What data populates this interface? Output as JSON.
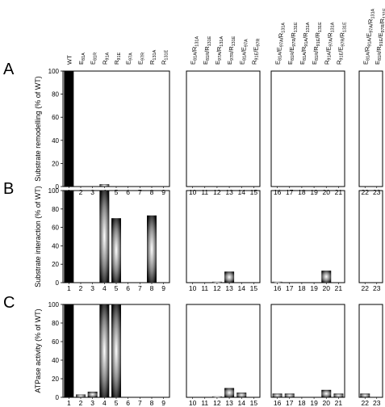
{
  "chart_data": [
    {
      "type": "bar",
      "panel_letter": "A",
      "ylabel": "Substrate remodelling (% of WT)",
      "ylim": [
        0,
        100
      ],
      "yticks": [
        0,
        20,
        40,
        60,
        80,
        100
      ],
      "groups": [
        [
          1,
          2,
          3,
          4,
          5,
          6,
          7,
          8,
          9
        ],
        [
          10,
          11,
          12,
          13,
          14,
          15
        ],
        [
          16,
          17,
          18,
          19,
          20,
          21
        ],
        [
          22,
          23
        ]
      ],
      "categories": [
        1,
        2,
        3,
        4,
        5,
        6,
        7,
        8,
        9,
        10,
        11,
        12,
        13,
        14,
        15,
        16,
        17,
        18,
        19,
        20,
        21,
        22,
        23
      ],
      "values": [
        100,
        0,
        0,
        2,
        0,
        0,
        0,
        0,
        0,
        0,
        0,
        0,
        0,
        0,
        0,
        0,
        0,
        0,
        0,
        0,
        0,
        0,
        0
      ]
    },
    {
      "type": "bar",
      "panel_letter": "B",
      "ylabel": "Substrate interaction (% of WT)",
      "ylim": [
        0,
        100
      ],
      "yticks": [
        0,
        20,
        40,
        60,
        80,
        100
      ],
      "groups": [
        [
          1,
          2,
          3,
          4,
          5,
          6,
          7,
          8,
          9
        ],
        [
          10,
          11,
          12,
          13,
          14,
          15
        ],
        [
          16,
          17,
          18,
          19,
          20,
          21
        ],
        [
          22,
          23
        ]
      ],
      "categories": [
        1,
        2,
        3,
        4,
        5,
        6,
        7,
        8,
        9,
        10,
        11,
        12,
        13,
        14,
        15,
        16,
        17,
        18,
        19,
        20,
        21,
        22,
        23
      ],
      "values": [
        100,
        0,
        0,
        100,
        70,
        0,
        0,
        73,
        0,
        0,
        0,
        1,
        12,
        0,
        0,
        1,
        0,
        0,
        0,
        13,
        0,
        0,
        0
      ]
    },
    {
      "type": "bar",
      "panel_letter": "C",
      "ylabel": "ATPase activity (% of WT)",
      "ylim": [
        0,
        100
      ],
      "yticks": [
        0,
        20,
        40,
        60,
        80,
        100
      ],
      "groups": [
        [
          1,
          2,
          3,
          4,
          5,
          6,
          7,
          8,
          9
        ],
        [
          10,
          11,
          12,
          13,
          14,
          15
        ],
        [
          16,
          17,
          18,
          19,
          20,
          21
        ],
        [
          22,
          23
        ]
      ],
      "categories": [
        1,
        2,
        3,
        4,
        5,
        6,
        7,
        8,
        9,
        10,
        11,
        12,
        13,
        14,
        15,
        16,
        17,
        18,
        19,
        20,
        21,
        22,
        23
      ],
      "values": [
        100,
        3,
        6,
        100,
        100,
        0,
        0,
        0,
        0,
        0,
        0,
        1,
        10,
        5,
        0,
        4,
        4,
        0,
        0,
        8,
        4,
        4,
        0
      ]
    }
  ],
  "mutant_labels": [
    [
      {
        "b": "WT",
        "s": ""
      }
    ],
    [
      {
        "b": "E",
        "s": "81A"
      }
    ],
    [
      {
        "b": "E",
        "s": "81R"
      }
    ],
    [
      {
        "b": "R",
        "s": "91A"
      }
    ],
    [
      {
        "b": "R",
        "s": "91E"
      }
    ],
    [
      {
        "b": "E",
        "s": "97A"
      }
    ],
    [
      {
        "b": "E",
        "s": "97R"
      }
    ],
    [
      {
        "b": "R",
        "s": "131A"
      }
    ],
    [
      {
        "b": "R",
        "s": "131E"
      }
    ],
    [
      {
        "b": "E",
        "s": "81A"
      },
      {
        "b": "/R",
        "s": "131A"
      }
    ],
    [
      {
        "b": "E",
        "s": "81R"
      },
      {
        "b": "/R",
        "s": "131E"
      }
    ],
    [
      {
        "b": "E",
        "s": "97A"
      },
      {
        "b": "/R",
        "s": "131A"
      }
    ],
    [
      {
        "b": "E",
        "s": "97R"
      },
      {
        "b": "/R",
        "s": "131E"
      }
    ],
    [
      {
        "b": "E",
        "s": "81A"
      },
      {
        "b": "/E",
        "s": "97A"
      }
    ],
    [
      {
        "b": "R",
        "s": "91E"
      },
      {
        "b": "/E",
        "s": "97R"
      }
    ],
    [
      {
        "b": "E",
        "s": "81A"
      },
      {
        "b": "/E",
        "s": "97A"
      },
      {
        "b": "/R",
        "s": "131A"
      }
    ],
    [
      {
        "b": "E",
        "s": "81R"
      },
      {
        "b": "/E",
        "s": "97R"
      },
      {
        "b": "/R",
        "s": "131E"
      }
    ],
    [
      {
        "b": "E",
        "s": "81A"
      },
      {
        "b": "/R",
        "s": "91A"
      },
      {
        "b": "/R",
        "s": "131A"
      }
    ],
    [
      {
        "b": "E",
        "s": "81R"
      },
      {
        "b": "/R",
        "s": "91E"
      },
      {
        "b": "/R",
        "s": "131E"
      }
    ],
    [
      {
        "b": "R",
        "s": "91A"
      },
      {
        "b": "/E",
        "s": "97A"
      },
      {
        "b": "/R",
        "s": "131A"
      }
    ],
    [
      {
        "b": "R",
        "s": "91E"
      },
      {
        "b": "/E",
        "s": "97R"
      },
      {
        "b": "/R",
        "s": "131E"
      }
    ],
    [
      {
        "b": "E",
        "s": "81A"
      },
      {
        "b": "/R",
        "s": "91A"
      },
      {
        "b": "/E",
        "s": "97A"
      },
      {
        "b": "/R",
        "s": "131A"
      }
    ],
    [
      {
        "b": "E",
        "s": "81R"
      },
      {
        "b": "/R",
        "s": "91E"
      },
      {
        "b": "/E",
        "s": "97R"
      },
      {
        "b": "/R",
        "s": "131E"
      }
    ]
  ],
  "colors": {
    "bar_solid": "#000000",
    "bar_gradient_edge": "#111111",
    "bar_gradient_center": "#ffffff"
  }
}
